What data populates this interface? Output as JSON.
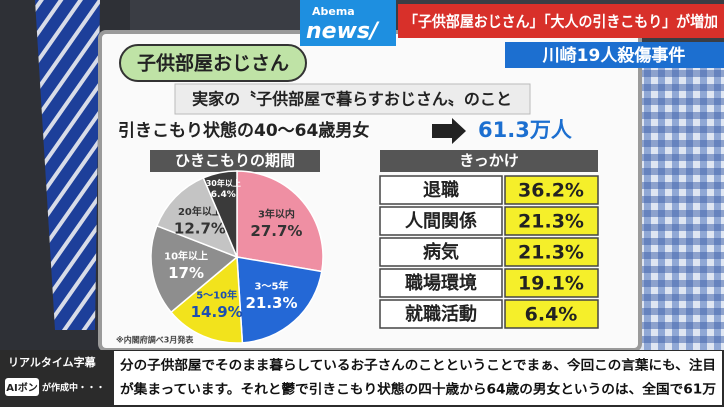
{
  "logo": {
    "brand": "Abema",
    "name": "news/"
  },
  "headline": "「子供部屋おじさん」「大人の引きこもり」が増加",
  "story": "川崎19人殺傷事件",
  "board": {
    "title": "子供部屋おじさん",
    "definition": "実家の〝子供部屋で暮らすおじさん〟のこと",
    "stat_label": "引きこもり状態の40〜64歳男女",
    "stat_value": "61.3万人"
  },
  "chart_data": {
    "type": "pie",
    "title": "ひきこもりの期間",
    "categories": [
      "3年以内",
      "3〜5年",
      "5〜10年",
      "10年以上",
      "20年以上",
      "30年以上"
    ],
    "values": [
      27.7,
      21.3,
      14.9,
      17,
      12.7,
      6.4
    ],
    "value_labels": [
      "27.7%",
      "21.3%",
      "14.9%",
      "17%",
      "12.7%",
      "6.4%"
    ],
    "colors": [
      "#ef8fa3",
      "#2468d6",
      "#f2e31c",
      "#8e8e8e",
      "#c4c4c4",
      "#3a3a3a"
    ],
    "note": "※内閣府調べ3月発表"
  },
  "table": {
    "title": "きっかけ",
    "rows": [
      [
        "退職",
        "36.2%"
      ],
      [
        "人間関係",
        "21.3%"
      ],
      [
        "病気",
        "21.3%"
      ],
      [
        "職場環境",
        "19.1%"
      ],
      [
        "就職活動",
        "6.4%"
      ]
    ]
  },
  "captions": {
    "label": "リアルタイム字幕",
    "ai": "AIボン",
    "ai_status": "が作成中・・・",
    "lines": [
      "分の子供部屋でそのまま暮らしているお子さんのことということでまぁ、今回この言葉にも、注目",
      "が集まっています。それと鬱で引きこもり状態の四十歳から64歳の男女というのは、全国で61万"
    ]
  }
}
